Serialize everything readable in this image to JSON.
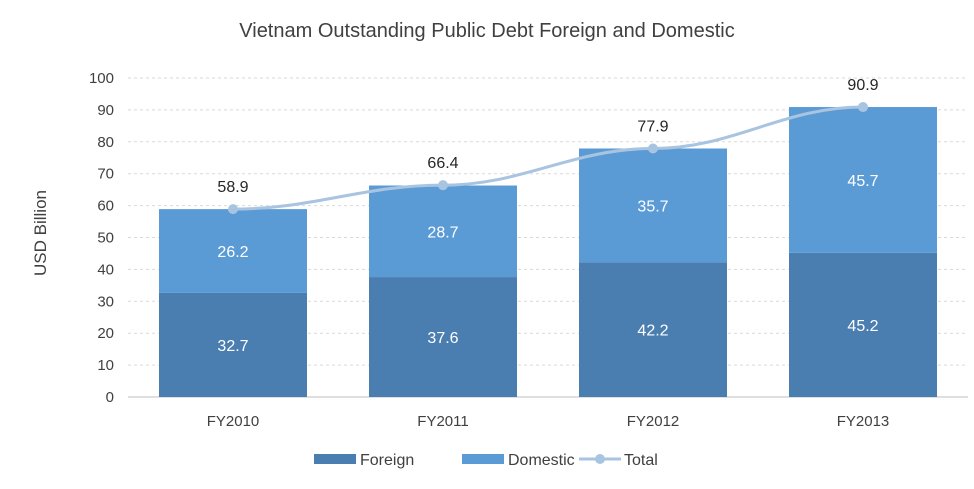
{
  "chart_data": {
    "type": "bar",
    "stacked": true,
    "title": "Vietnam Outstanding Public Debt Foreign and Domestic",
    "xlabel": "",
    "ylabel": "USD Billion",
    "ylim": [
      0,
      100
    ],
    "yticks": [
      0,
      10,
      20,
      30,
      40,
      50,
      60,
      70,
      80,
      90,
      100
    ],
    "grid": true,
    "legend_position": "bottom",
    "categories": [
      "FY2010",
      "FY2011",
      "FY2012",
      "FY2013"
    ],
    "series": [
      {
        "name": "Foreign",
        "kind": "bar",
        "color": "#4a7eb0",
        "values": [
          32.7,
          37.6,
          42.2,
          45.2
        ]
      },
      {
        "name": "Domestic",
        "kind": "bar",
        "color": "#5b9bd5",
        "values": [
          26.2,
          28.7,
          35.7,
          45.7
        ]
      },
      {
        "name": "Total",
        "kind": "line",
        "color": "#a9c4e0",
        "values": [
          58.9,
          66.4,
          77.9,
          90.9
        ]
      }
    ]
  }
}
